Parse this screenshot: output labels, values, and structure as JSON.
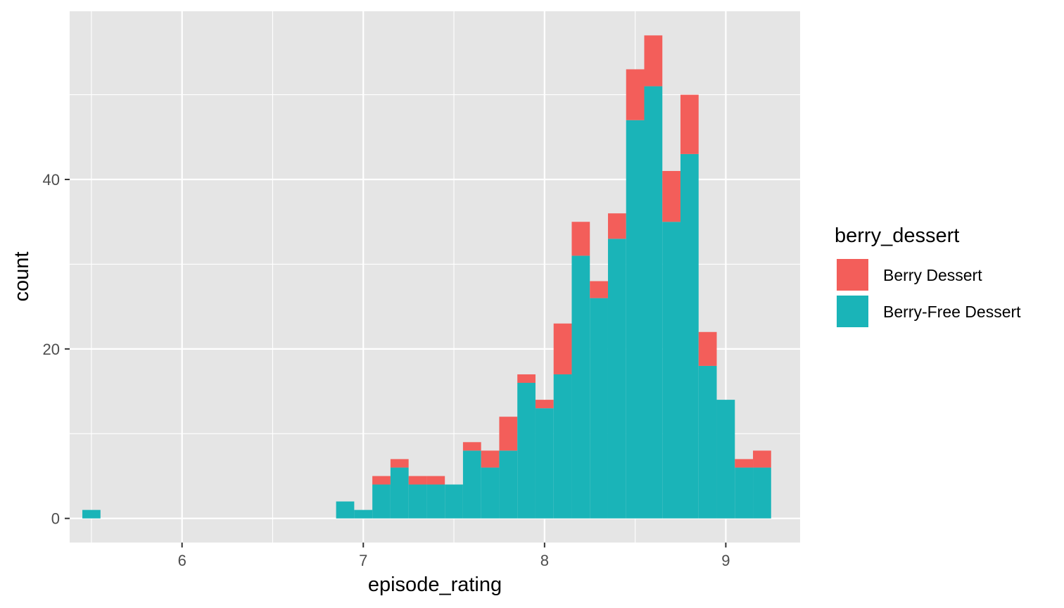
{
  "chart_data": {
    "type": "bar",
    "subtype": "stacked-histogram",
    "title": "",
    "xlabel": "episode_rating",
    "ylabel": "count",
    "xlim": [
      5.38,
      9.41
    ],
    "ylim": [
      -2.85,
      59.85
    ],
    "x_ticks": [
      6,
      7,
      8,
      9
    ],
    "y_ticks": [
      0,
      20,
      40
    ],
    "x_tick_labels": [
      "6",
      "7",
      "8",
      "9"
    ],
    "y_tick_labels": [
      "0",
      "20",
      "40"
    ],
    "grid": true,
    "legend": {
      "title": "berry_dessert",
      "placement": "right"
    },
    "bin_width": 0.1,
    "bin_centers": [
      5.5,
      6.9,
      7.0,
      7.1,
      7.2,
      7.3,
      7.4,
      7.5,
      7.6,
      7.7,
      7.8,
      7.9,
      8.0,
      8.1,
      8.2,
      8.3,
      8.4,
      8.5,
      8.6,
      8.7,
      8.8,
      8.9,
      9.0,
      9.1,
      9.2
    ],
    "series": [
      {
        "name": "Berry-Free Dessert",
        "color": "#1AB4B8",
        "values": [
          1,
          2,
          1,
          4,
          6,
          4,
          4,
          4,
          8,
          6,
          8,
          16,
          13,
          17,
          31,
          26,
          33,
          47,
          51,
          35,
          43,
          18,
          14,
          6,
          6
        ]
      },
      {
        "name": "Berry Dessert",
        "color": "#F35E5A",
        "values": [
          0,
          0,
          0,
          1,
          1,
          1,
          1,
          0,
          1,
          2,
          4,
          1,
          1,
          6,
          4,
          2,
          3,
          6,
          6,
          6,
          7,
          4,
          0,
          1,
          2
        ]
      }
    ],
    "stack_order": [
      "Berry-Free Dessert",
      "Berry Dessert"
    ],
    "legend_order": [
      "Berry Dessert",
      "Berry-Free Dessert"
    ],
    "panel_background": "#E5E5E5",
    "grid_color": "#FFFFFF"
  }
}
